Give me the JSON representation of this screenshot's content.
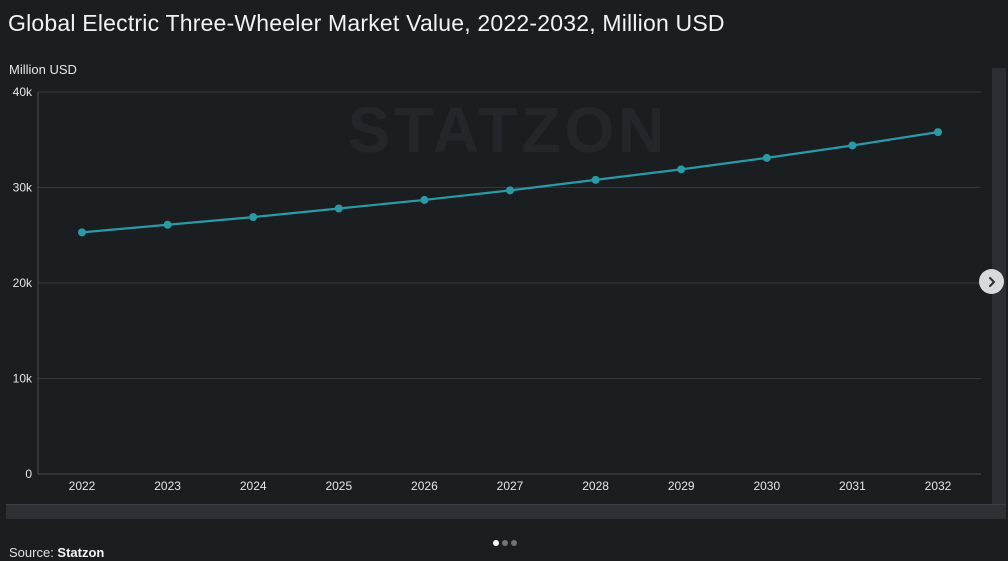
{
  "chart_data": {
    "type": "line",
    "title": "Global Electric Three-Wheeler Market Value, 2022-2032, Million USD",
    "ylabel": "Million USD",
    "xlabel": "",
    "categories": [
      "2022",
      "2023",
      "2024",
      "2025",
      "2026",
      "2027",
      "2028",
      "2029",
      "2030",
      "2031",
      "2032"
    ],
    "series": [
      {
        "values": [
          25300,
          26100,
          26900,
          27800,
          28700,
          29700,
          30800,
          31900,
          33100,
          34400,
          35800
        ]
      }
    ],
    "ylim": [
      0,
      40000
    ],
    "yticks": [
      0,
      10000,
      20000,
      30000,
      40000
    ],
    "ytick_labels": [
      "0",
      "10k",
      "20k",
      "30k",
      "40k"
    ],
    "grid": true,
    "line_color": "#2a9aa6",
    "watermark": "STATZON"
  },
  "source": {
    "prefix": "Source: ",
    "name": "Statzon"
  },
  "colors": {
    "background": "#1b1e21",
    "grid": "#34383d",
    "accent": "#2a9aa6"
  },
  "pagination": {
    "total": 3,
    "active": 0
  },
  "icons": {
    "next": "chevron-right-icon"
  }
}
